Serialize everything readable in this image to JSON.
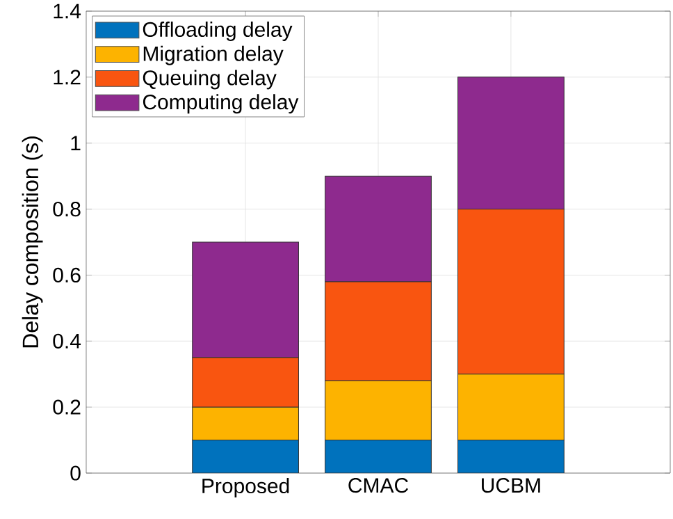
{
  "chart_data": {
    "type": "bar",
    "stacked": true,
    "ylabel": "Delay composition (s)",
    "categories": [
      "Proposed",
      "CMAC",
      "UCBM"
    ],
    "series": [
      {
        "name": "Offloading delay",
        "color": "#0072bd",
        "values": [
          0.1,
          0.1,
          0.1
        ]
      },
      {
        "name": "Migration delay",
        "color": "#fdb300",
        "values": [
          0.1,
          0.18,
          0.2
        ]
      },
      {
        "name": "Queuing delay",
        "color": "#f95510",
        "values": [
          0.15,
          0.3,
          0.5
        ]
      },
      {
        "name": "Computing delay",
        "color": "#8e2a8e",
        "values": [
          0.35,
          0.32,
          0.4
        ]
      }
    ],
    "ylim": [
      0,
      1.4
    ],
    "yticks": [
      0,
      0.2,
      0.4,
      0.6,
      0.8,
      1,
      1.2,
      1.4
    ],
    "grid": true,
    "legend": "top left"
  }
}
